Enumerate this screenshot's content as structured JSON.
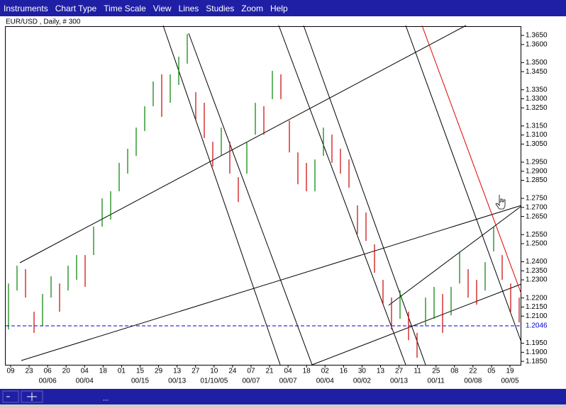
{
  "menu": [
    "Instruments",
    "Chart Type",
    "Time Scale",
    "View",
    "Lines",
    "Studies",
    "Zoom",
    "Help"
  ],
  "chart_data": {
    "type": "ohlc",
    "title": "EUR/USD , Daily, # 300",
    "high": [
      1.228,
      1.2378,
      1.2359,
      1.2124,
      1.2222,
      1.232,
      1.228,
      1.2378,
      1.2437,
      1.2437,
      1.2594,
      1.275,
      1.2789,
      1.2946,
      1.3024,
      1.3141,
      1.3259,
      1.3396,
      1.3435,
      1.3435,
      1.3533,
      1.3658,
      1.3337,
      1.3278,
      1.3063,
      1.3141,
      1.3063,
      1.2867,
      1.3063,
      1.3278,
      1.3259,
      1.3454,
      1.3435,
      1.318,
      1.3004,
      1.2946,
      1.2965,
      1.3141,
      1.3102,
      1.3024,
      1.2965,
      1.2711,
      1.2672,
      1.2496,
      1.23,
      1.2202,
      1.2241,
      1.2124,
      1.2007,
      1.2202,
      1.2261,
      1.2222,
      1.2261,
      1.2457,
      1.2359,
      1.23,
      1.2398,
      1.2594,
      1.2437,
      1.228,
      1.2202
    ],
    "low": [
      1.2026,
      1.2241,
      1.2202,
      1.2007,
      1.2046,
      1.2202,
      1.2124,
      1.2241,
      1.23,
      1.2261,
      1.2437,
      1.2594,
      1.2633,
      1.2789,
      1.2887,
      1.2985,
      1.3122,
      1.3259,
      1.32,
      1.3278,
      1.3376,
      1.3494,
      1.318,
      1.3083,
      1.2926,
      1.2985,
      1.2887,
      1.273,
      1.2887,
      1.3102,
      1.3102,
      1.3298,
      1.3298,
      1.3004,
      1.2828,
      1.2789,
      1.2789,
      1.2985,
      1.2946,
      1.2887,
      1.2809,
      1.2554,
      1.2515,
      1.2339,
      1.2163,
      1.2026,
      1.2085,
      1.1967,
      1.187,
      1.2046,
      1.2085,
      1.2007,
      1.2104,
      1.228,
      1.2202,
      1.2163,
      1.2241,
      1.2457,
      1.23,
      1.2124,
      1.2065
    ],
    "up_color": "#008000",
    "down_color": "#cc0000",
    "ylim": [
      1.1827,
      1.3697
    ],
    "yticks": [
      {
        "value": 1.365,
        "label": "1.3650"
      },
      {
        "value": 1.36,
        "label": "1.3600"
      },
      {
        "value": 1.35,
        "label": "1.3500"
      },
      {
        "value": 1.345,
        "label": "1.3450"
      },
      {
        "value": 1.335,
        "label": "1.3350"
      },
      {
        "value": 1.33,
        "label": "1.3300"
      },
      {
        "value": 1.325,
        "label": "1.3250"
      },
      {
        "value": 1.315,
        "label": "1.3150"
      },
      {
        "value": 1.31,
        "label": "1.3100"
      },
      {
        "value": 1.305,
        "label": "1.3050"
      },
      {
        "value": 1.295,
        "label": "1.2950"
      },
      {
        "value": 1.29,
        "label": "1.2900"
      },
      {
        "value": 1.285,
        "label": "1.2850"
      },
      {
        "value": 1.275,
        "label": "1.2750"
      },
      {
        "value": 1.27,
        "label": "1.2700"
      },
      {
        "value": 1.265,
        "label": "1.2650"
      },
      {
        "value": 1.255,
        "label": "1.2550"
      },
      {
        "value": 1.25,
        "label": "1.2500"
      },
      {
        "value": 1.24,
        "label": "1.2400"
      },
      {
        "value": 1.235,
        "label": "1.2350"
      },
      {
        "value": 1.23,
        "label": "1.2300"
      },
      {
        "value": 1.22,
        "label": "1.2200"
      },
      {
        "value": 1.215,
        "label": "1.2150"
      },
      {
        "value": 1.21,
        "label": "1.2100"
      },
      {
        "value": 1.195,
        "label": "1.1950"
      },
      {
        "value": 1.19,
        "label": "1.1900"
      },
      {
        "value": 1.185,
        "label": "1.1850"
      }
    ],
    "current_price": {
      "value": 1.2046,
      "label": "1.2046"
    },
    "current_price_color": "#0000cc",
    "categories": [
      "09",
      "23",
      "06",
      "20",
      "04",
      "18",
      "01",
      "15",
      "29",
      "13",
      "27",
      "10",
      "24",
      "07",
      "21",
      "04",
      "18",
      "02",
      "16",
      "30",
      "13",
      "27",
      "11",
      "25",
      "08",
      "22",
      "05",
      "19"
    ],
    "sublabels": [
      null,
      null,
      "00/06",
      null,
      "00/04",
      null,
      null,
      "00/15",
      null,
      "00/13",
      null,
      "01/10/05",
      null,
      "00/07",
      null,
      "00/07",
      null,
      "00/04",
      null,
      "00/02",
      null,
      "00/13",
      null,
      "00/11",
      null,
      "00/08",
      null,
      "00/05"
    ]
  },
  "status_bar": {
    "text": "..."
  }
}
